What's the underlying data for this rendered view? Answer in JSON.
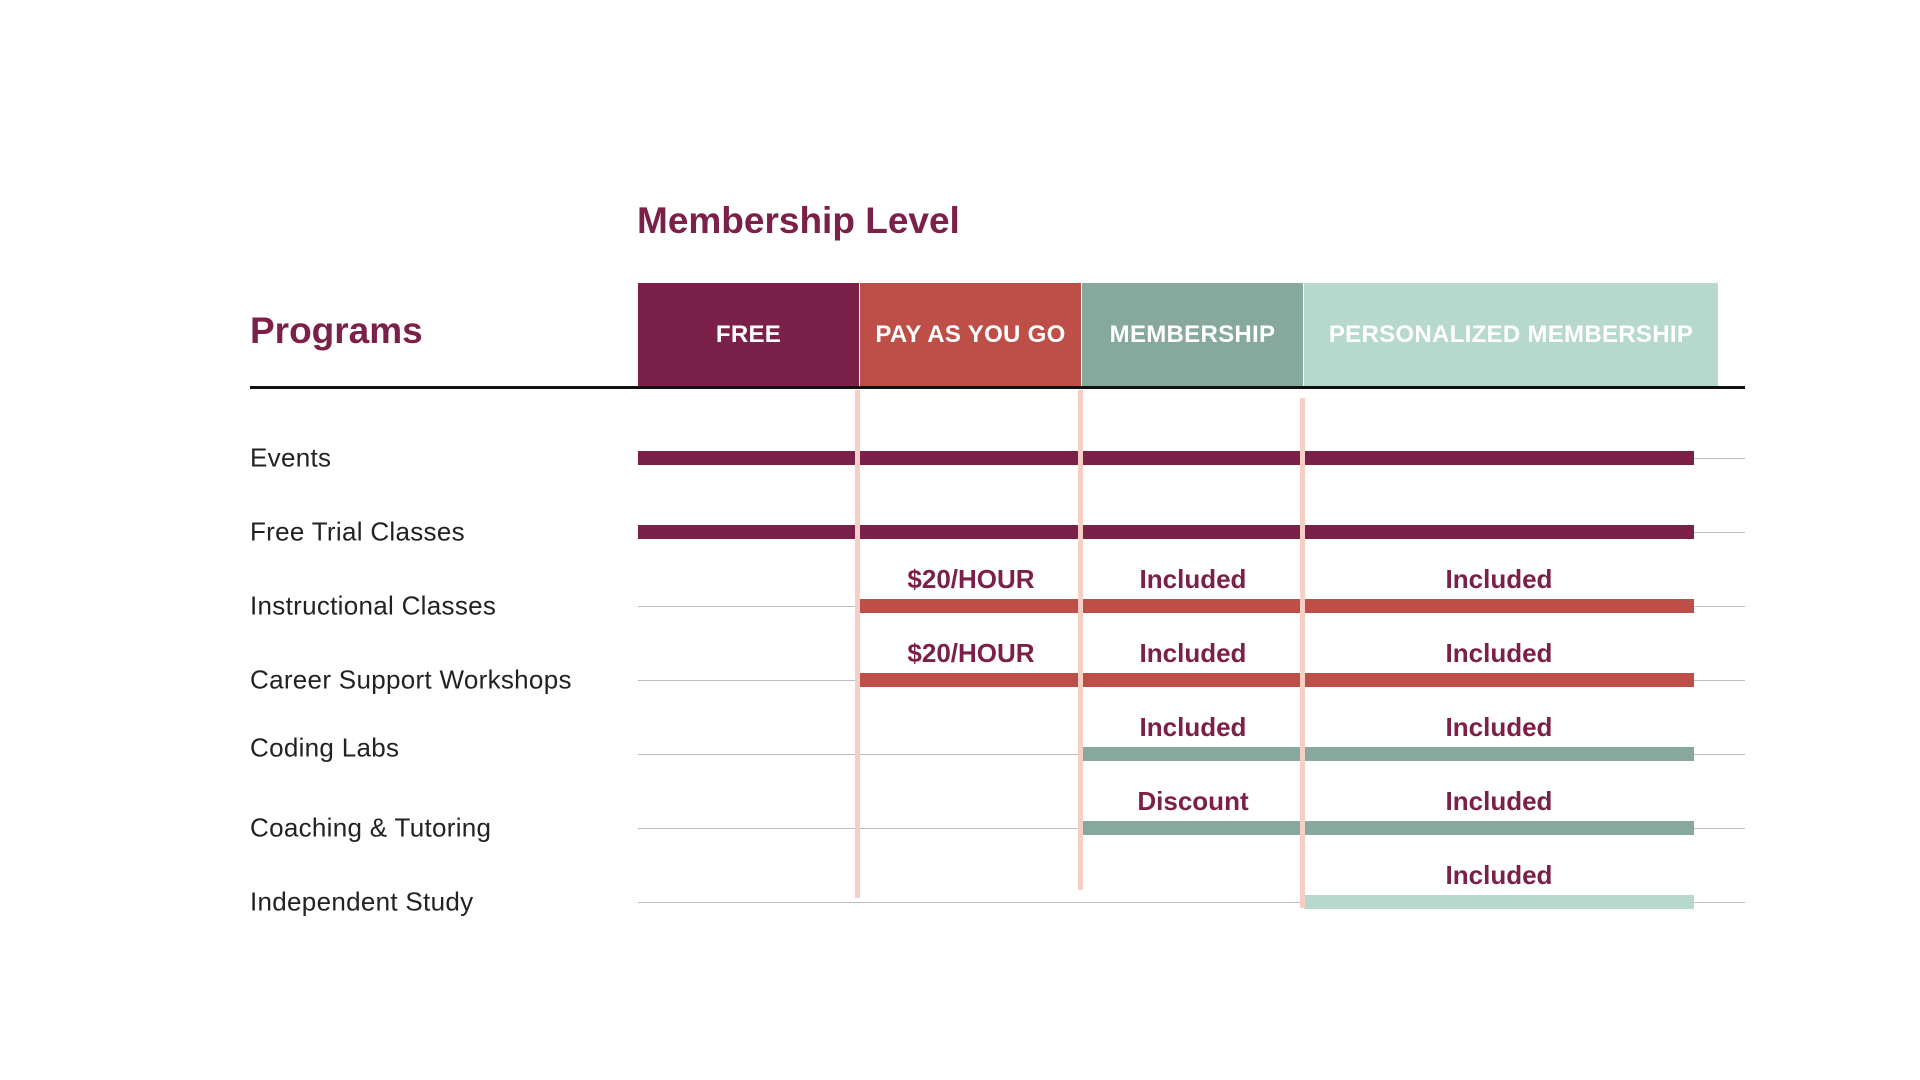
{
  "titles": {
    "membership_level": "Membership Level",
    "programs": "Programs"
  },
  "colors": {
    "free": "#7b2049",
    "pay_as_you_go": "#bd4e48",
    "membership": "#87a89c",
    "personalized": "#b7d8cd",
    "divider": "#f5cfc6",
    "text_accent": "#7b2049"
  },
  "levels": [
    {
      "key": "free",
      "label": "FREE"
    },
    {
      "key": "payg",
      "label": "PAY AS YOU GO"
    },
    {
      "key": "membership",
      "label": "MEMBERSHIP"
    },
    {
      "key": "personalized",
      "label": "PERSONALIZED MEMBERSHIP"
    }
  ],
  "rows": [
    {
      "label": "Events",
      "starts_at_level": 0,
      "bar_color": "#7b2049",
      "cells": [
        "",
        "",
        "",
        ""
      ]
    },
    {
      "label": "Free Trial Classes",
      "starts_at_level": 0,
      "bar_color": "#7b2049",
      "cells": [
        "",
        "",
        "",
        ""
      ]
    },
    {
      "label": "Instructional Classes",
      "starts_at_level": 1,
      "bar_color": "#bd4e48",
      "cells": [
        "",
        "$20/HOUR",
        "Included",
        "Included"
      ]
    },
    {
      "label": "Career Support Workshops",
      "starts_at_level": 1,
      "bar_color": "#bd4e48",
      "cells": [
        "",
        "$20/HOUR",
        "Included",
        "Included"
      ]
    },
    {
      "label": "Coding Labs",
      "starts_at_level": 2,
      "bar_color": "#87a89c",
      "cells": [
        "",
        "",
        "Included",
        "Included"
      ]
    },
    {
      "label": "Coaching & Tutoring",
      "starts_at_level": 2,
      "bar_color": "#87a89c",
      "cells": [
        "",
        "",
        "Discount",
        "Included"
      ]
    },
    {
      "label": "Independent Study",
      "starts_at_level": 3,
      "bar_color": "#b7d8cd",
      "cells": [
        "",
        "",
        "",
        "Included"
      ]
    }
  ]
}
